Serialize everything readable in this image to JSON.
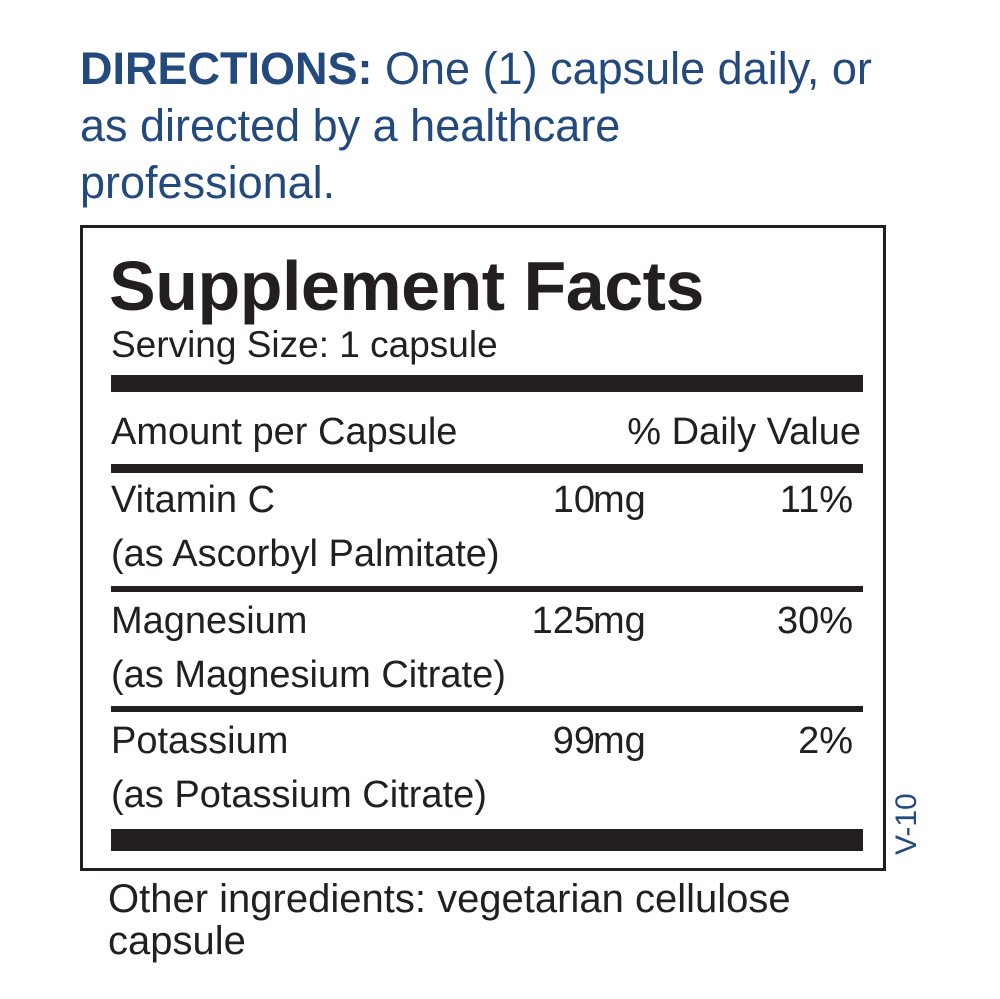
{
  "directions": {
    "label": "DIRECTIONS:",
    "text": "One (1) capsule daily, or as directed by a healthcare professional."
  },
  "facts": {
    "title": "Supplement Facts",
    "serving_size": "Serving Size: 1 capsule",
    "header_amount": "Amount per Capsule",
    "header_dv": "% Daily Value",
    "rows": [
      {
        "name": "Vitamin C",
        "amount": "10",
        "unit": "mg",
        "dv": "11%",
        "source": "(as Ascorbyl Palmitate)"
      },
      {
        "name": "Magnesium",
        "amount": "125",
        "unit": "mg",
        "dv": "30%",
        "source": "(as Magnesium Citrate)"
      },
      {
        "name": "Potassium",
        "amount": "99",
        "unit": "mg",
        "dv": "2%",
        "source": "(as Potassium Citrate)"
      }
    ]
  },
  "version": "V-10",
  "other_ingredients": "Other ingredients: vegetarian cellulose capsule",
  "colors": {
    "directions": "#234a7d",
    "text": "#231f20"
  }
}
